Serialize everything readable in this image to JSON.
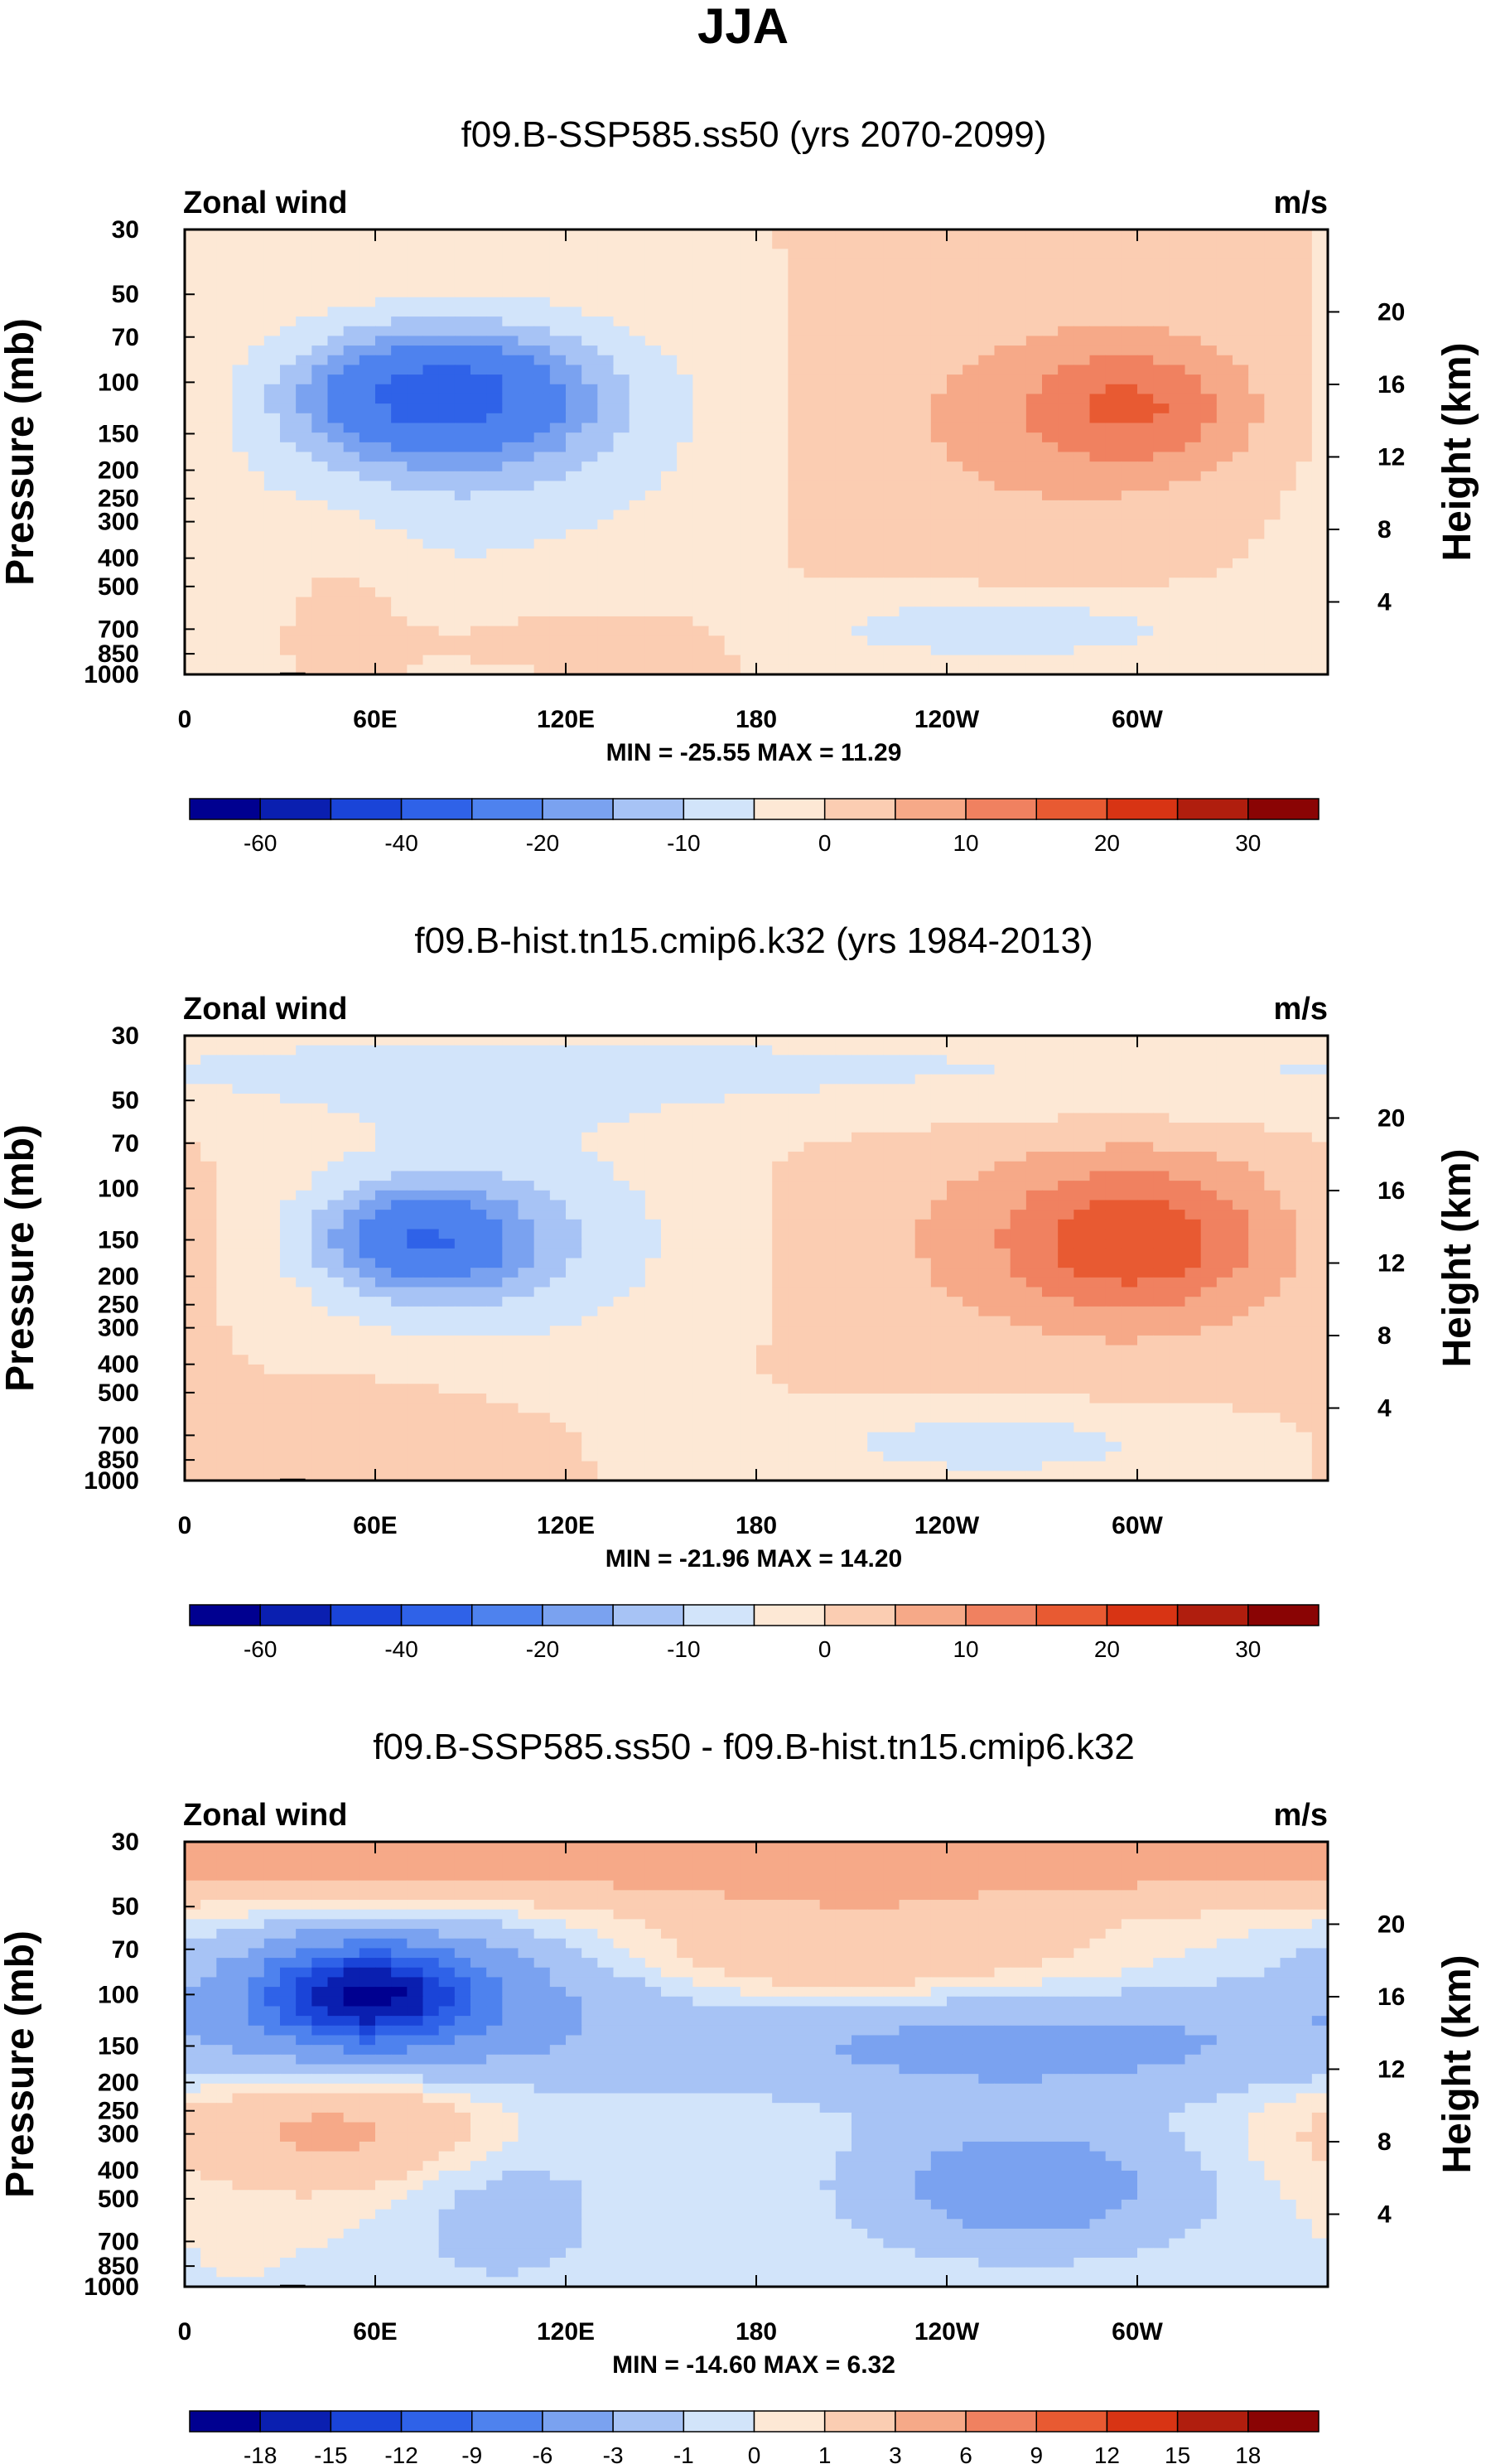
{
  "figure_title": "JJA",
  "x_tick_labels": [
    "0",
    "60E",
    "120E",
    "180",
    "120W",
    "60W"
  ],
  "pressure_tick_labels": [
    "30",
    "50",
    "70",
    "100",
    "150",
    "200",
    "250",
    "300",
    "400",
    "500",
    "700",
    "850",
    "1000"
  ],
  "height_tick_labels": [
    "20",
    "16",
    "12",
    "8",
    "4"
  ],
  "colors": {
    "abs_scale": [
      "#000090",
      "#0a1fb0",
      "#1a44d8",
      "#2f62e8",
      "#4e82ee",
      "#7aa2f0",
      "#a7c3f5",
      "#d2e4fa",
      "#fde8d5",
      "#fbcdb2",
      "#f6a988",
      "#f08160",
      "#e85a32",
      "#d83414",
      "#b01e0e",
      "#8a0404"
    ],
    "diff_scale": [
      "#000090",
      "#0a1fb0",
      "#1a44d8",
      "#2f62e8",
      "#4e82ee",
      "#7aa2f0",
      "#a7c3f5",
      "#d2e4fa",
      "#fde8d5",
      "#fbcdb2",
      "#f6a988",
      "#f08160",
      "#e85a32",
      "#d83414",
      "#b01e0e",
      "#8a0404"
    ]
  },
  "chart_data": [
    {
      "type": "heatmap",
      "title": "f09.B-SSP585.ss50 (yrs 2070-2099)",
      "left_label": "Zonal wind",
      "right_label": "m/s",
      "ylabel": "Pressure (mb)",
      "ylabel_right": "Height (km)",
      "xlabel": "",
      "x_range": [
        0,
        360
      ],
      "y_range_mb": [
        1000,
        30
      ],
      "min_max_text": "MIN = -25.55  MAX =  11.29",
      "colorbar_labels": [
        "-60",
        "-40",
        "-20",
        "-10",
        "0",
        "10",
        "20",
        "30"
      ],
      "colorbar_label_slots": [
        1,
        3,
        5,
        7,
        9,
        11,
        13,
        15
      ],
      "levels": [
        -70,
        -60,
        -50,
        -40,
        -30,
        -20,
        -15,
        -10,
        -5,
        0,
        5,
        10,
        15,
        20,
        25,
        30,
        35
      ],
      "scale": "abs",
      "blobs": [
        {
          "lon": 80,
          "p": 110,
          "sx": 30,
          "sy": 0.33,
          "amp": -25.5
        },
        {
          "lon": 95,
          "p": 130,
          "sx": 55,
          "sy": 0.65,
          "amp": -10
        },
        {
          "lon": 65,
          "p": 350,
          "sx": 60,
          "sy": 0.9,
          "amp": -3
        },
        {
          "lon": 300,
          "p": 120,
          "sx": 25,
          "sy": 0.35,
          "amp": 11.3
        },
        {
          "lon": 270,
          "p": 140,
          "sx": 60,
          "sy": 0.7,
          "amp": 6
        },
        {
          "lon": 255,
          "p": 700,
          "sx": 45,
          "sy": 0.18,
          "amp": -9
        },
        {
          "lon": 50,
          "p": 550,
          "sx": 15,
          "sy": 0.5,
          "amp": 4
        },
        {
          "lon": 120,
          "p": 750,
          "sx": 45,
          "sy": 0.2,
          "amp": 3
        }
      ]
    },
    {
      "type": "heatmap",
      "title": "f09.B-hist.tn15.cmip6.k32 (yrs 1984-2013)",
      "left_label": "Zonal wind",
      "right_label": "m/s",
      "ylabel": "Pressure (mb)",
      "ylabel_right": "Height (km)",
      "xlabel": "",
      "x_range": [
        0,
        360
      ],
      "y_range_mb": [
        1000,
        30
      ],
      "min_max_text": "MIN = -21.96  MAX =  14.20",
      "colorbar_labels": [
        "-60",
        "-40",
        "-20",
        "-10",
        "0",
        "10",
        "20",
        "30"
      ],
      "colorbar_label_slots": [
        1,
        3,
        5,
        7,
        9,
        11,
        13,
        15
      ],
      "levels": [
        -70,
        -60,
        -50,
        -40,
        -30,
        -20,
        -15,
        -10,
        -5,
        0,
        5,
        10,
        15,
        20,
        25,
        30,
        35
      ],
      "scale": "abs",
      "blobs": [
        {
          "lon": 75,
          "p": 150,
          "sx": 22,
          "sy": 0.28,
          "amp": -22
        },
        {
          "lon": 95,
          "p": 150,
          "sx": 50,
          "sy": 0.65,
          "amp": -10
        },
        {
          "lon": 300,
          "p": 150,
          "sx": 28,
          "sy": 0.4,
          "amp": 14.2
        },
        {
          "lon": 280,
          "p": 150,
          "sx": 65,
          "sy": 0.7,
          "amp": 6
        },
        {
          "lon": 255,
          "p": 750,
          "sx": 45,
          "sy": 0.2,
          "amp": -8
        },
        {
          "lon": 60,
          "p": 700,
          "sx": 30,
          "sy": 0.3,
          "amp": 5
        },
        {
          "lon": 180,
          "p": 40,
          "sx": 400,
          "sy": 0.3,
          "amp": -6
        }
      ]
    },
    {
      "type": "heatmap",
      "title": "f09.B-SSP585.ss50 - f09.B-hist.tn15.cmip6.k32",
      "left_label": "Zonal wind",
      "right_label": "m/s",
      "ylabel": "Pressure (mb)",
      "ylabel_right": "Height (km)",
      "xlabel": "",
      "x_range": [
        0,
        360
      ],
      "y_range_mb": [
        1000,
        30
      ],
      "min_max_text": "MIN = -14.60  MAX =   6.32",
      "colorbar_labels": [
        "-18",
        "-15",
        "-12",
        "-9",
        "-6",
        "-3",
        "-1",
        "0",
        "1",
        "3",
        "6",
        "9",
        "12",
        "15",
        "18"
      ],
      "colorbar_label_slots": [
        1,
        2,
        3,
        4,
        5,
        6,
        7,
        8,
        9,
        10,
        11,
        12,
        13,
        14,
        15
      ],
      "levels": [
        -21,
        -18,
        -15,
        -12,
        -9,
        -6,
        -3,
        -1,
        0,
        1,
        3,
        6,
        9,
        12,
        15,
        18,
        21
      ],
      "scale": "diff",
      "blobs": [
        {
          "lon": 58,
          "p": 100,
          "sx": 22,
          "sy": 0.25,
          "amp": -14.6
        },
        {
          "lon": 70,
          "p": 110,
          "sx": 50,
          "sy": 0.45,
          "amp": -5
        },
        {
          "lon": 260,
          "p": 150,
          "sx": 70,
          "sy": 0.3,
          "amp": -4
        },
        {
          "lon": 265,
          "p": 450,
          "sx": 35,
          "sy": 0.35,
          "amp": -5
        },
        {
          "lon": 180,
          "p": 35,
          "sx": 400,
          "sy": 0.25,
          "amp": 4
        },
        {
          "lon": 50,
          "p": 280,
          "sx": 40,
          "sy": 0.35,
          "amp": 4
        },
        {
          "lon": 210,
          "p": 70,
          "sx": 50,
          "sy": 0.3,
          "amp": 3
        },
        {
          "lon": 100,
          "p": 500,
          "sx": 25,
          "sy": 0.5,
          "amp": -2
        }
      ]
    }
  ]
}
